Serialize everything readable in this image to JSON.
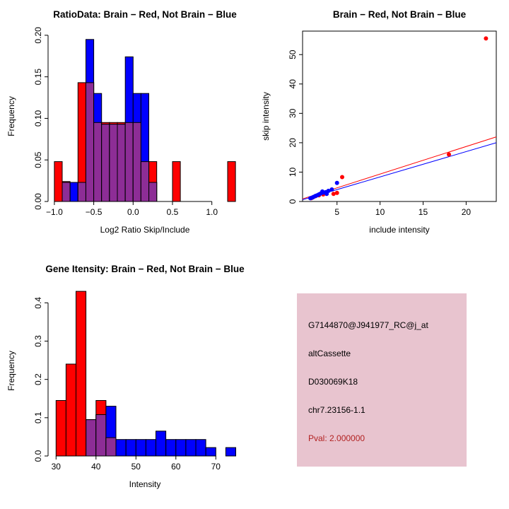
{
  "page": {
    "background": "#ffffff"
  },
  "colors": {
    "brain": "#ff0000",
    "not_brain": "#0000ff",
    "overlap": "#8d2d96"
  },
  "chart_data": [
    {
      "type": "bar",
      "title": "RatioData: Brain − Red, Not Brain − Blue",
      "xlabel": "Log2 Ratio Skip/Include",
      "ylabel": "Frequency",
      "xlim": [
        -1.08,
        1.38
      ],
      "ylim": [
        0,
        0.205
      ],
      "xticks": [
        -1.0,
        -0.5,
        0.0,
        0.5,
        1.0
      ],
      "xtick_labels": [
        "−1.0",
        "−0.5",
        "0.0",
        "0.5",
        "1.0"
      ],
      "yticks": [
        0.0,
        0.05,
        0.1,
        0.15,
        0.2
      ],
      "ytick_labels": [
        "0.00",
        "0.05",
        "0.10",
        "0.15",
        "0.20"
      ],
      "bin_width": 0.1,
      "overlap_color": "#8d2d96",
      "grid": false,
      "legend": "none",
      "series": [
        {
          "name": "Brain",
          "color": "#ff0000",
          "bins": [
            [
              -1.0,
              0.048
            ],
            [
              -0.9,
              0.024
            ],
            [
              -0.7,
              0.143
            ],
            [
              -0.6,
              0.143
            ],
            [
              -0.5,
              0.095
            ],
            [
              -0.4,
              0.095
            ],
            [
              -0.3,
              0.095
            ],
            [
              -0.2,
              0.095
            ],
            [
              -0.1,
              0.095
            ],
            [
              0.0,
              0.095
            ],
            [
              0.1,
              0.048
            ],
            [
              0.2,
              0.048
            ],
            [
              0.5,
              0.048
            ],
            [
              1.2,
              0.048
            ]
          ]
        },
        {
          "name": "Not Brain",
          "color": "#0000ff",
          "bins": [
            [
              -0.9,
              0.023
            ],
            [
              -0.8,
              0.023
            ],
            [
              -0.7,
              0.023
            ],
            [
              -0.6,
              0.195
            ],
            [
              -0.5,
              0.13
            ],
            [
              -0.4,
              0.093
            ],
            [
              -0.3,
              0.093
            ],
            [
              -0.2,
              0.093
            ],
            [
              -0.1,
              0.174
            ],
            [
              0.0,
              0.13
            ],
            [
              0.1,
              0.13
            ],
            [
              0.2,
              0.023
            ]
          ]
        }
      ]
    },
    {
      "type": "scatter",
      "title": "Brain − Red, Not Brain − Blue",
      "xlabel": "include intensity",
      "ylabel": "skip intensity",
      "xlim": [
        1,
        23.5
      ],
      "ylim": [
        0,
        58
      ],
      "xticks": [
        5,
        10,
        15,
        20
      ],
      "xtick_labels": [
        "5",
        "10",
        "15",
        "20"
      ],
      "yticks": [
        0,
        10,
        20,
        30,
        40,
        50
      ],
      "ytick_labels": [
        "0",
        "10",
        "20",
        "30",
        "40",
        "50"
      ],
      "grid": false,
      "legend": "none",
      "series": [
        {
          "name": "Brain",
          "color": "#ff0000",
          "points": [
            [
              22.3,
              55.5
            ],
            [
              18.0,
              16.0
            ],
            [
              5.6,
              8.3
            ],
            [
              5.0,
              2.9
            ],
            [
              4.6,
              2.6
            ],
            [
              3.4,
              2.4
            ],
            [
              2.9,
              2.1
            ],
            [
              2.5,
              1.8
            ],
            [
              2.2,
              1.4
            ],
            [
              2.0,
              1.1
            ]
          ]
        },
        {
          "name": "Not Brain",
          "color": "#0000ff",
          "points": [
            [
              5.0,
              6.3
            ],
            [
              4.4,
              4.1
            ],
            [
              4.0,
              3.6
            ],
            [
              3.7,
              3.2
            ],
            [
              3.4,
              3.0
            ],
            [
              3.1,
              2.7
            ],
            [
              2.9,
              2.4
            ],
            [
              2.7,
              2.1
            ],
            [
              2.5,
              1.9
            ],
            [
              2.3,
              1.6
            ],
            [
              2.1,
              1.3
            ],
            [
              1.9,
              1.1
            ],
            [
              3.3,
              3.4
            ],
            [
              3.8,
              2.6
            ]
          ]
        }
      ],
      "lines": [
        {
          "name": "Brain fit",
          "color": "#ff0000",
          "x1": 1,
          "y1": 0.9,
          "x2": 23.5,
          "y2": 22.0
        },
        {
          "name": "Not Brain fit",
          "color": "#0000ff",
          "x1": 1,
          "y1": 0.6,
          "x2": 23.5,
          "y2": 20.0
        }
      ]
    },
    {
      "type": "bar",
      "title": "Gene Itensity: Brain − Red, Not Brain − Blue",
      "xlabel": "Intensity",
      "ylabel": "Frequency",
      "xlim": [
        28,
        76.5
      ],
      "ylim": [
        0,
        0.445
      ],
      "xticks": [
        30,
        40,
        50,
        60,
        70
      ],
      "xtick_labels": [
        "30",
        "40",
        "50",
        "60",
        "70"
      ],
      "yticks": [
        0.0,
        0.1,
        0.2,
        0.3,
        0.4
      ],
      "ytick_labels": [
        "0.0",
        "0.1",
        "0.2",
        "0.3",
        "0.4"
      ],
      "bin_width": 2.5,
      "overlap_color": "#8d2d96",
      "grid": false,
      "legend": "none",
      "series": [
        {
          "name": "Brain",
          "color": "#ff0000",
          "bins": [
            [
              30,
              0.145
            ],
            [
              32.5,
              0.24
            ],
            [
              35,
              0.43
            ],
            [
              37.5,
              0.095
            ],
            [
              40,
              0.145
            ],
            [
              42.5,
              0.048
            ]
          ]
        },
        {
          "name": "Not Brain",
          "color": "#0000ff",
          "bins": [
            [
              37.5,
              0.095
            ],
            [
              40,
              0.108
            ],
            [
              42.5,
              0.13
            ],
            [
              45,
              0.043
            ],
            [
              47.5,
              0.043
            ],
            [
              50,
              0.043
            ],
            [
              52.5,
              0.043
            ],
            [
              55,
              0.065
            ],
            [
              57.5,
              0.043
            ],
            [
              60,
              0.043
            ],
            [
              62.5,
              0.043
            ],
            [
              65,
              0.043
            ],
            [
              67.5,
              0.022
            ],
            [
              72.5,
              0.022
            ]
          ]
        }
      ]
    }
  ],
  "info_box": {
    "background": "#e8c4cf",
    "text_color": "#000000",
    "pval_color": "#b22222",
    "probe_id": "G7144870@J941977_RC@j_at",
    "event_type": "altCassette",
    "clone_id": "D030069K18",
    "location": "chr7.23156-1.1",
    "pval": "Pval: 2.000000"
  }
}
